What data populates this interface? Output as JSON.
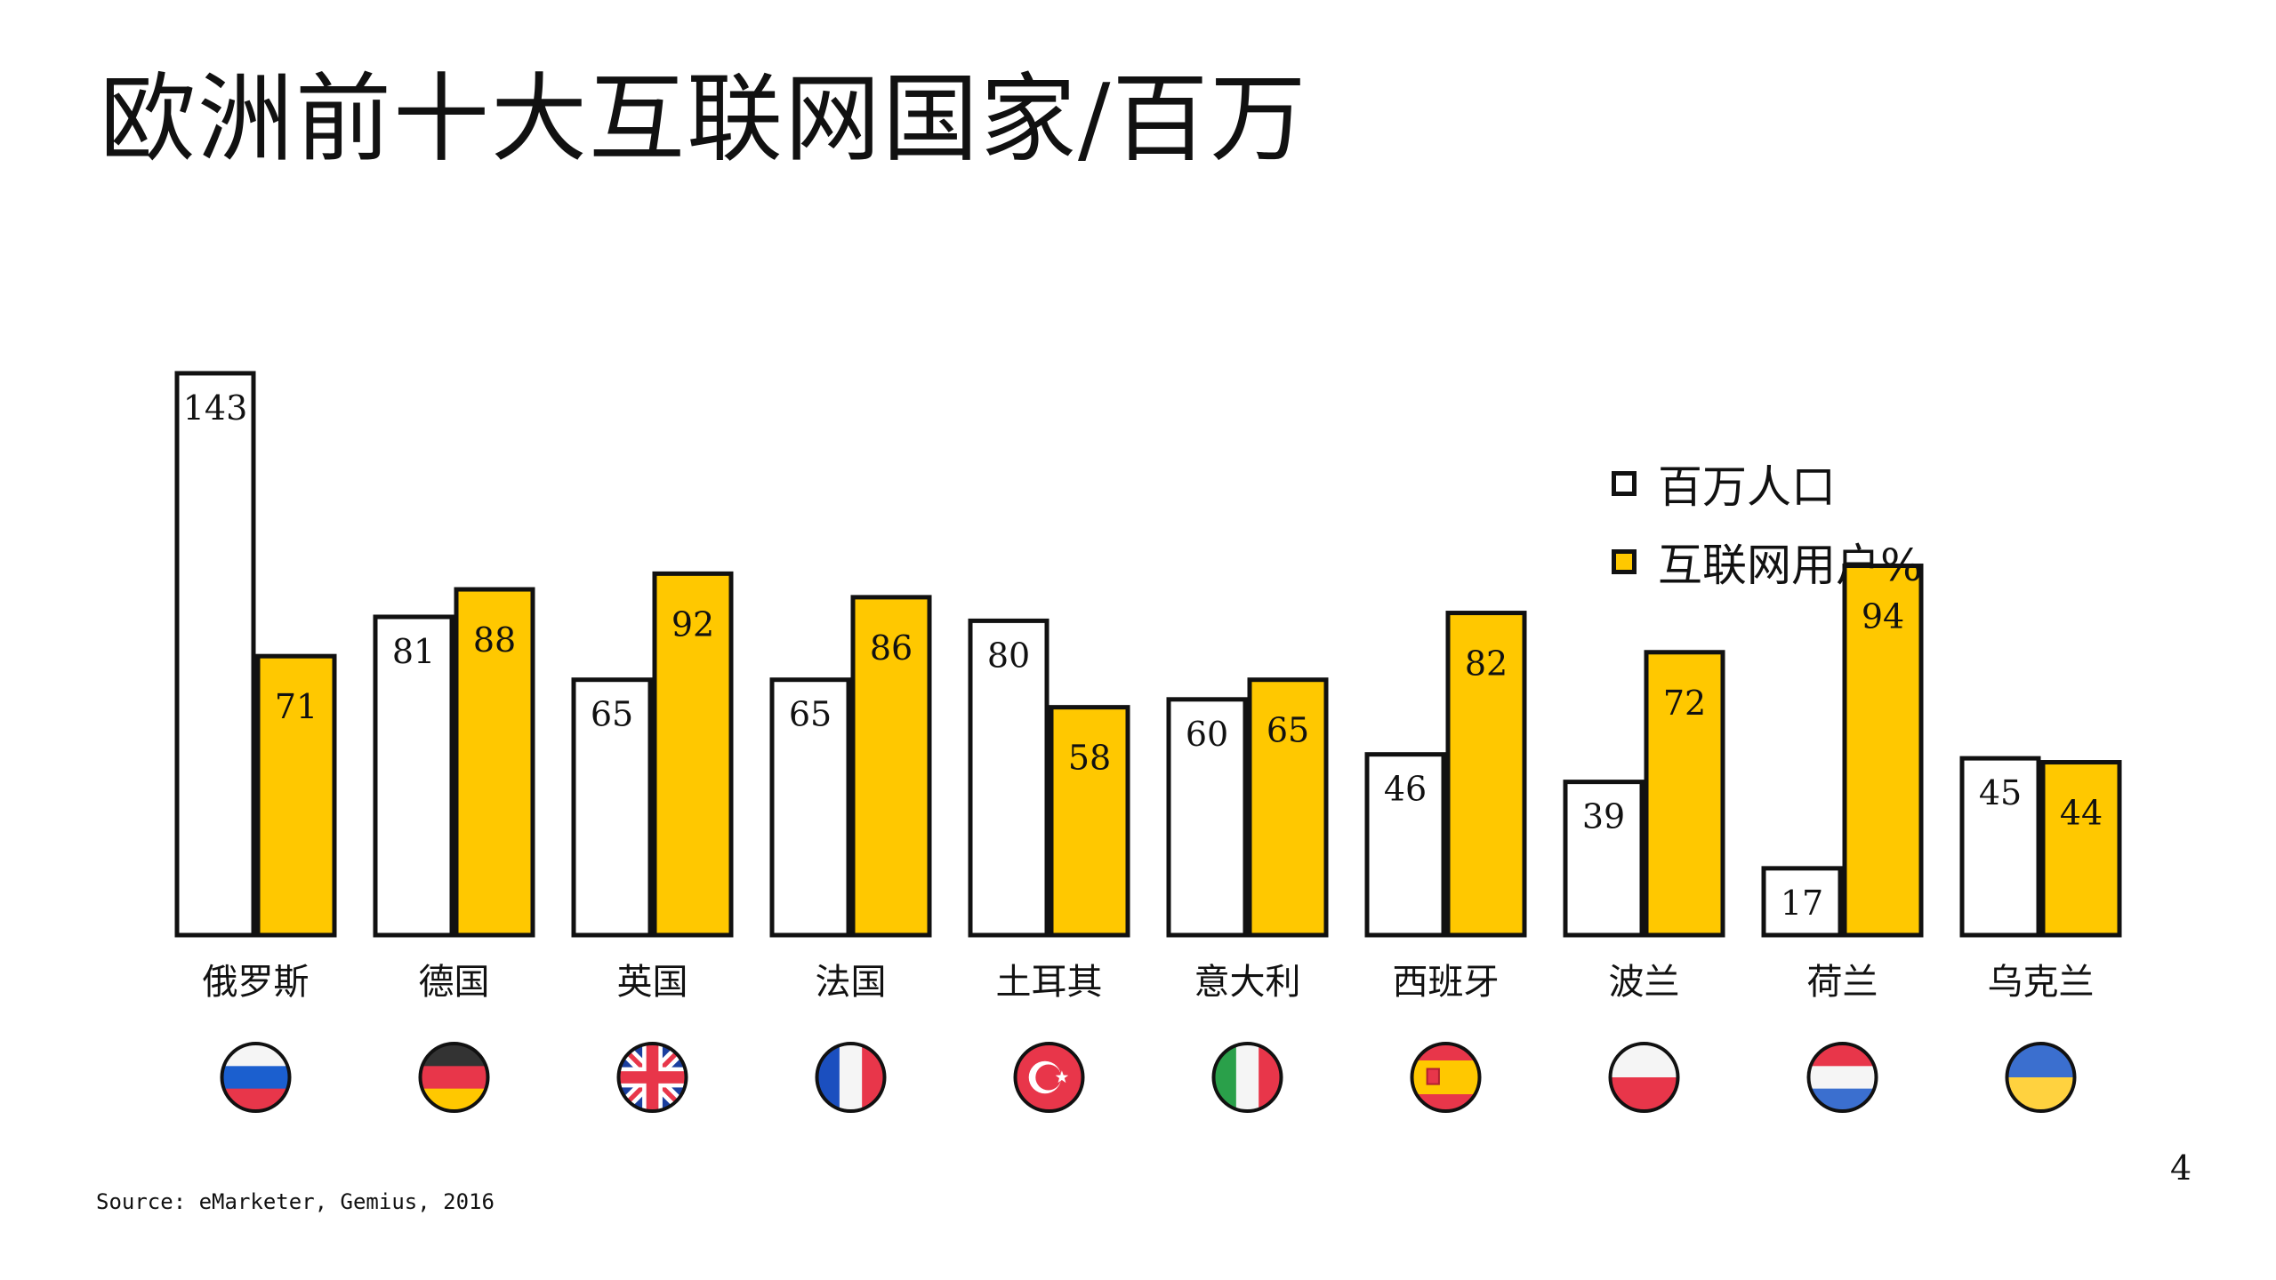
{
  "title": "欧洲前十大互联网国家/百万",
  "source": "Source: eMarketer, Gemius, 2016",
  "page_number": "4",
  "colors": {
    "population": "#ffffff",
    "internet": "#ffc800",
    "outline": "#111111"
  },
  "chart_data": {
    "type": "bar",
    "title": "欧洲前十大互联网国家/百万",
    "categories": [
      "俄罗斯",
      "德国",
      "英国",
      "法国",
      "土耳其",
      "意大利",
      "西班牙",
      "波兰",
      "荷兰",
      "乌克兰"
    ],
    "flags": [
      "russia-flag-icon",
      "germany-flag-icon",
      "uk-flag-icon",
      "france-flag-icon",
      "turkey-flag-icon",
      "italy-flag-icon",
      "spain-flag-icon",
      "poland-flag-icon",
      "netherlands-flag-icon",
      "ukraine-flag-icon"
    ],
    "series": [
      {
        "name": "百万人口",
        "values": [
          143,
          81,
          65,
          65,
          80,
          60,
          46,
          39,
          17,
          45
        ]
      },
      {
        "name": "互联网用户%",
        "values": [
          71,
          88,
          92,
          86,
          58,
          65,
          82,
          72,
          94,
          44
        ]
      }
    ],
    "legend_position": "top-right",
    "grid": false
  }
}
